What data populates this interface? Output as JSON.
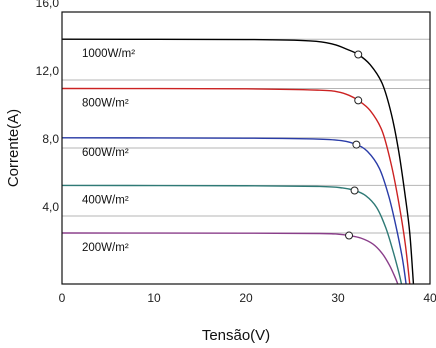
{
  "chart_data": {
    "type": "line",
    "title": "",
    "xlabel": "Tensão(V)",
    "ylabel": "Corrente(A)",
    "xlim": [
      0,
      40
    ],
    "ylim": [
      0,
      16
    ],
    "x_ticks": [
      0,
      10,
      20,
      30,
      40
    ],
    "x_tick_labels": [
      "0",
      "10",
      "20",
      "30",
      "40"
    ],
    "y_ticks": [
      4,
      8,
      12,
      16
    ],
    "y_tick_labels": [
      "4,0",
      "8,0",
      "12,0",
      "16,0"
    ],
    "grid": "horizontal",
    "legend": "none",
    "series": [
      {
        "name": "1000W/m²",
        "color": "#000000",
        "isc": 14.4,
        "points": [
          [
            0,
            14.4
          ],
          [
            20,
            14.38
          ],
          [
            27,
            14.3
          ],
          [
            29.5,
            14.1
          ],
          [
            31,
            13.8
          ],
          [
            32.2,
            13.5
          ],
          [
            33.5,
            12.9
          ],
          [
            34.8,
            11.8
          ],
          [
            35.8,
            10.0
          ],
          [
            36.6,
            7.8
          ],
          [
            37.3,
            5.2
          ],
          [
            37.8,
            3.0
          ],
          [
            38.2,
            0
          ]
        ],
        "mpp": [
          32.2,
          13.5
        ]
      },
      {
        "name": "800W/m²",
        "color": "#cc2222",
        "isc": 11.5,
        "points": [
          [
            0,
            11.5
          ],
          [
            20,
            11.48
          ],
          [
            28,
            11.4
          ],
          [
            30,
            11.3
          ],
          [
            31.2,
            11.1
          ],
          [
            32.2,
            10.8
          ],
          [
            33.5,
            10.2
          ],
          [
            34.8,
            9.0
          ],
          [
            35.8,
            7.0
          ],
          [
            36.6,
            4.8
          ],
          [
            37.3,
            2.4
          ],
          [
            37.8,
            0
          ]
        ],
        "mpp": [
          32.2,
          10.8
        ]
      },
      {
        "name": "600W/m²",
        "color": "#2a3ca8",
        "isc": 8.6,
        "points": [
          [
            0,
            8.6
          ],
          [
            20,
            8.58
          ],
          [
            28,
            8.52
          ],
          [
            30.5,
            8.42
          ],
          [
            32.0,
            8.2
          ],
          [
            33.2,
            7.8
          ],
          [
            34.5,
            6.8
          ],
          [
            35.5,
            5.2
          ],
          [
            36.3,
            3.4
          ],
          [
            37.0,
            1.5
          ],
          [
            37.4,
            0
          ]
        ],
        "mpp": [
          32.0,
          8.2
        ]
      },
      {
        "name": "400W/m²",
        "color": "#2f7a76",
        "isc": 5.8,
        "points": [
          [
            0,
            5.8
          ],
          [
            20,
            5.78
          ],
          [
            28,
            5.74
          ],
          [
            30.5,
            5.65
          ],
          [
            31.8,
            5.5
          ],
          [
            33.0,
            5.2
          ],
          [
            34.2,
            4.5
          ],
          [
            35.2,
            3.3
          ],
          [
            36.0,
            1.9
          ],
          [
            36.6,
            0.7
          ],
          [
            36.9,
            0
          ]
        ],
        "mpp": [
          31.8,
          5.5
        ]
      },
      {
        "name": "200W/m²",
        "color": "#8a3e8a",
        "isc": 3.0,
        "points": [
          [
            0,
            3.0
          ],
          [
            20,
            2.99
          ],
          [
            28,
            2.97
          ],
          [
            30,
            2.93
          ],
          [
            31.2,
            2.85
          ],
          [
            32.5,
            2.7
          ],
          [
            33.8,
            2.35
          ],
          [
            34.8,
            1.8
          ],
          [
            35.6,
            1.1
          ],
          [
            36.2,
            0.4
          ],
          [
            36.5,
            0
          ]
        ],
        "mpp": [
          31.2,
          2.85
        ]
      }
    ]
  }
}
